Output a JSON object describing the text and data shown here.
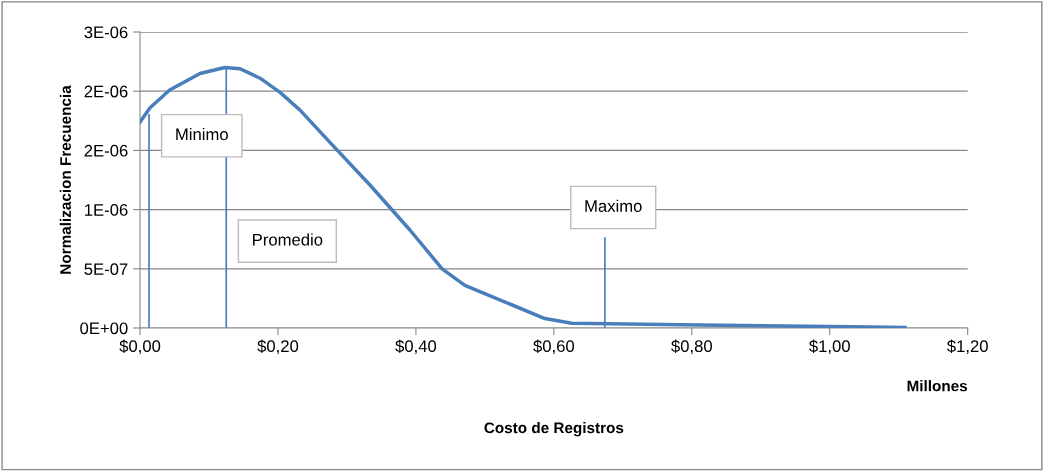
{
  "chart_data": {
    "type": "line",
    "xlabel": "Costo de Registros",
    "ylabel": "Normalizacion Frecuencia",
    "x": [
      0,
      0.0145,
      0.043,
      0.087,
      0.123,
      0.145,
      0.174,
      0.203,
      0.232,
      0.275,
      0.333,
      0.391,
      0.438,
      0.471,
      0.587,
      0.626,
      0.812,
      1.03,
      1.109
    ],
    "series": [
      {
        "color": "#4a7ebb",
        "values": [
          1.74e-06,
          1.86e-06,
          2.01e-06,
          2.15e-06,
          2.2e-06,
          2.19e-06,
          2.11e-06,
          1.99e-06,
          1.84e-06,
          1.57e-06,
          1.21e-06,
          8.3e-07,
          5e-07,
          3.6e-07,
          8e-08,
          4e-08,
          2.5e-08,
          1e-08,
          5e-09
        ]
      },
      {
        "color": "#4a7ebb",
        "x": [
          0.013,
          0.013
        ],
        "values": [
          0,
          1.8e-06
        ]
      },
      {
        "color": "#4a7ebb",
        "x": [
          0.125,
          0.125
        ],
        "values": [
          0,
          2.2e-06
        ]
      },
      {
        "color": "#4a7ebb",
        "x": [
          0.674,
          0.674
        ],
        "values": [
          0,
          7.6e-07
        ]
      }
    ],
    "xlim": [
      0,
      1.2
    ],
    "ylim": [
      0,
      2.5e-06
    ],
    "xticks": [
      {
        "value": 0,
        "label": "$0,00"
      },
      {
        "value": 0.2,
        "label": "$0,20"
      },
      {
        "value": 0.4,
        "label": "$0,40"
      },
      {
        "value": 0.6,
        "label": "$0,60"
      },
      {
        "value": 0.8,
        "label": "$0,80"
      },
      {
        "value": 1.0,
        "label": "$1,00"
      },
      {
        "value": 1.2,
        "label": "$1,20"
      }
    ],
    "yticks": [
      {
        "value": 0,
        "label": "0E+00"
      },
      {
        "value": 5e-07,
        "label": "5E-07"
      },
      {
        "value": 1e-06,
        "label": "1E-06"
      },
      {
        "value": 1.5e-06,
        "label": "2E-06"
      },
      {
        "value": 2e-06,
        "label": "2E-06"
      },
      {
        "value": 2.5e-06,
        "label": "3E-06"
      }
    ],
    "annotations": [
      "Minimo",
      "Promedio",
      "Maximo",
      "Millones"
    ],
    "grid": "y",
    "legend": false,
    "marker": "none",
    "line_style": "solid"
  }
}
